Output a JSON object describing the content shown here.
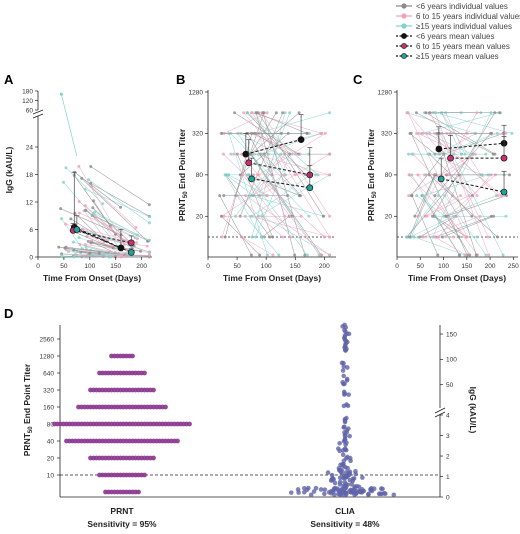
{
  "colors": {
    "lt6": "#8a8a8a",
    "mid": "#f0a0b8",
    "ge15": "#7fd3cc",
    "lt6_mean": "#111111",
    "mid_mean": "#c8326e",
    "ge15_mean": "#21a39a",
    "violin": "#8b3b8f",
    "clia": "#5f63a8"
  },
  "legend": [
    {
      "label": "<6 years individual values",
      "kind": "indiv",
      "group": "lt6"
    },
    {
      "label": "6 to 15 years individual values",
      "kind": "indiv",
      "group": "mid"
    },
    {
      "label": "≥15 years individual values",
      "kind": "indiv",
      "group": "ge15"
    },
    {
      "label": "<6 years mean values",
      "kind": "mean",
      "group": "lt6"
    },
    {
      "label": "6 to 15 years mean values",
      "kind": "mean",
      "group": "mid"
    },
    {
      "label": "≥15 years mean values",
      "kind": "mean",
      "group": "ge15"
    }
  ],
  "chart_data": [
    {
      "panel": "A",
      "type": "line",
      "xlabel": "Time From Onset (Days)",
      "ylabel": "IgG (kAU/L)",
      "x_ticks": [
        "0",
        "50",
        "100",
        "150",
        "200"
      ],
      "xlim": [
        0,
        220
      ],
      "y_ticks_lower": [
        "0",
        "6",
        "12",
        "18",
        "24"
      ],
      "ylim_lower": [
        0,
        24
      ],
      "y_ticks_upper": [
        "60",
        "120",
        "180"
      ],
      "series": [
        {
          "group": "lt6",
          "x": [
            70,
            160
          ],
          "y": [
            6.5,
            2.0
          ],
          "err": [
            12,
            4
          ]
        },
        {
          "group": "mid",
          "x": [
            68,
            180
          ],
          "y": [
            5.8,
            3.1
          ],
          "err": [
            1.5,
            1.5
          ]
        },
        {
          "group": "ge15",
          "x": [
            75,
            180
          ],
          "y": [
            6.0,
            1.0
          ],
          "err": [
            3,
            0.8
          ]
        }
      ]
    },
    {
      "panel": "B",
      "type": "line",
      "xlabel": "Time From Onset (Days)",
      "ylabel": "PRNT50 End Point Titer",
      "ylabel_main": "PRNT",
      "ylabel_sub": "50",
      "ylabel_rest": " End Point Titer",
      "x_ticks": [
        "0",
        "50",
        "100",
        "150",
        "200"
      ],
      "xlim": [
        0,
        220
      ],
      "y_ticks": [
        "20",
        "80",
        "320",
        "1280"
      ],
      "ylim_log2": [
        10,
        1280
      ],
      "cutoff": 10,
      "series": [
        {
          "group": "lt6",
          "x": [
            65,
            160
          ],
          "y": [
            160,
            260
          ],
          "err_up": [
            320,
            600
          ]
        },
        {
          "group": "mid",
          "x": [
            70,
            175
          ],
          "y": [
            120,
            80
          ],
          "err_up": [
            260,
            200
          ]
        },
        {
          "group": "ge15",
          "x": [
            75,
            175
          ],
          "y": [
            70,
            52
          ],
          "err_up": [
            140,
            110
          ]
        }
      ]
    },
    {
      "panel": "C",
      "type": "line",
      "xlabel": "Time From Onset (Days)",
      "ylabel": "PRNT50 End Point Titer",
      "ylabel_main": "PRNT",
      "ylabel_sub": "50",
      "ylabel_rest": " End Point Titer",
      "x_ticks": [
        "0",
        "50",
        "100",
        "150",
        "200",
        "250"
      ],
      "xlim": [
        0,
        260
      ],
      "y_ticks": [
        "20",
        "80",
        "320",
        "1280"
      ],
      "ylim_log2": [
        10,
        1280
      ],
      "cutoff": 10,
      "series": [
        {
          "group": "lt6",
          "x": [
            90,
            230
          ],
          "y": [
            190,
            230
          ],
          "err_up": [
            400,
            420
          ]
        },
        {
          "group": "mid",
          "x": [
            115,
            230
          ],
          "y": [
            140,
            140
          ],
          "err_up": [
            300,
            290
          ]
        },
        {
          "group": "ge15",
          "x": [
            95,
            230
          ],
          "y": [
            70,
            45
          ],
          "err_up": [
            140,
            90
          ]
        }
      ]
    },
    {
      "panel": "D",
      "type": "scatter",
      "left_ylabel": "PRNT50 End Point Titer",
      "left_ylabel_main": "PRNT",
      "left_ylabel_sub": "50",
      "left_ylabel_rest": " End Point Titer",
      "right_ylabel": "IgG (kAU/L)",
      "left_y_ticks": [
        "10",
        "20",
        "40",
        "80",
        "160",
        "320",
        "640",
        "1280",
        "2560"
      ],
      "right_y_ticks_lower": [
        "0",
        "1",
        "2",
        "3",
        "4"
      ],
      "right_y_ticks_upper": [
        "50",
        "100",
        "150"
      ],
      "categories": [
        "PRNT",
        "CLIA"
      ],
      "sensitivity": [
        "Sensitivity = 95%",
        "Sensitivity = 48%"
      ],
      "prnt_counts": [
        {
          "titer": 5,
          "n": 12
        },
        {
          "titer": 10,
          "n": 16
        },
        {
          "titer": 20,
          "n": 22
        },
        {
          "titer": 40,
          "n": 38
        },
        {
          "titer": 80,
          "n": 46
        },
        {
          "titer": 160,
          "n": 30
        },
        {
          "titer": 320,
          "n": 22
        },
        {
          "titer": 640,
          "n": 16
        },
        {
          "titer": 1280,
          "n": 8
        }
      ],
      "cutoff_titer": 10,
      "cutoff_igg": 1.1
    }
  ]
}
